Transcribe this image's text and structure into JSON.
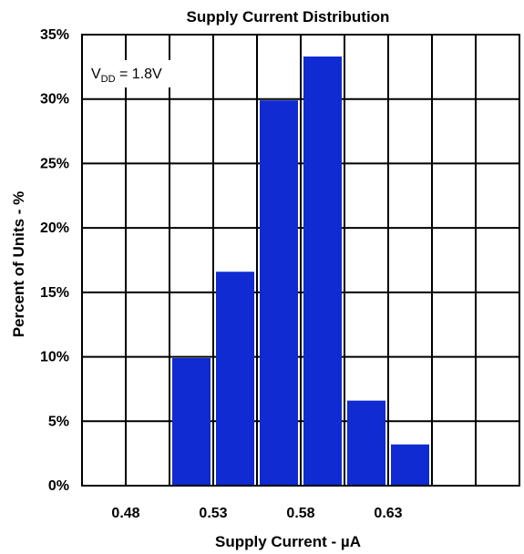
{
  "chart_data": {
    "type": "bar",
    "title": "Supply Current Distribution",
    "xlabel": "Supply Current - µA",
    "ylabel": "Percent of Units - %",
    "x_tick_labels": [
      "0.48",
      "0.53",
      "0.58",
      "0.63"
    ],
    "y_tick_labels": [
      "0%",
      "5%",
      "10%",
      "15%",
      "20%",
      "25%",
      "30%",
      "35%"
    ],
    "y_ticks": [
      0,
      5,
      10,
      15,
      20,
      25,
      30,
      35
    ],
    "ylim": [
      0,
      35
    ],
    "bin_start": 0.455,
    "bin_width": 0.025,
    "categories": [
      "0.455",
      "0.480",
      "0.505",
      "0.530",
      "0.555",
      "0.580",
      "0.605",
      "0.630",
      "0.655",
      "0.680"
    ],
    "values": [
      0,
      0,
      9.9,
      16.6,
      29.9,
      33.3,
      6.6,
      3.2,
      0,
      0
    ],
    "bar_color": "#0f2bd1",
    "grid": true,
    "annotation": {
      "main": "V",
      "sub": "DD",
      "rest": " = 1.8V"
    }
  }
}
